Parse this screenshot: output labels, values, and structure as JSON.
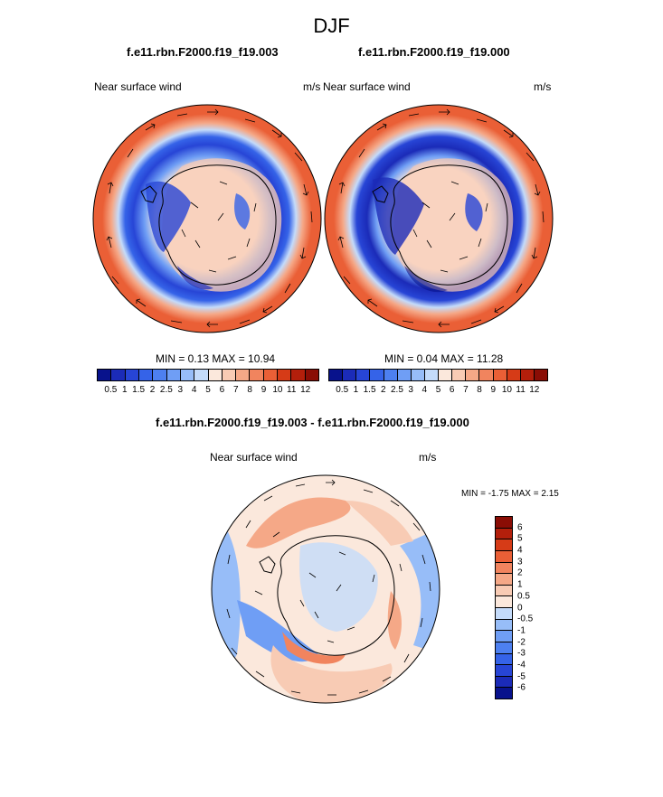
{
  "figure": {
    "title": "DJF",
    "panels": [
      {
        "title": "f.e11.rbn.F2000.f19_f19.003",
        "variable": "Near surface wind",
        "units": "m/s",
        "min_label": "MIN =   0.13 MAX =  10.94",
        "min": 0.13,
        "max": 10.94
      },
      {
        "title": "f.e11.rbn.F2000.f19_f19.000",
        "variable": "Near surface wind",
        "units": "m/s",
        "min_label": "MIN =   0.04 MAX =  11.28",
        "min": 0.04,
        "max": 11.28
      },
      {
        "title": "f.e11.rbn.F2000.f19_f19.003 - f.e11.rbn.F2000.f19_f19.000",
        "variable": "Near surface wind",
        "units": "m/s",
        "min_label": "MIN =  -1.75 MAX =   2.15",
        "min": -1.75,
        "max": 2.15
      }
    ],
    "wind_colorbar": {
      "labels": [
        "0.5",
        "1",
        "1.5",
        "2",
        "2.5",
        "3",
        "4",
        "5",
        "6",
        "7",
        "8",
        "9",
        "10",
        "11",
        "12"
      ],
      "colors": [
        "#08128c",
        "#1b2bb8",
        "#2745d6",
        "#3563e8",
        "#4d80f0",
        "#6f9ef5",
        "#97bdf8",
        "#c4dbfa",
        "#fbe8dc",
        "#f8cbb4",
        "#f5a887",
        "#f1845e",
        "#ea5f36",
        "#d63b17",
        "#b31f0b",
        "#8a0d05"
      ]
    },
    "diff_colorbar": {
      "labels": [
        "6",
        "5",
        "4",
        "3",
        "2",
        "1",
        "0.5",
        "0",
        "-0.5",
        "-1",
        "-2",
        "-3",
        "-4",
        "-5",
        "-6"
      ],
      "colors": [
        "#8a0d05",
        "#b31f0b",
        "#d63b17",
        "#ea5f36",
        "#f1845e",
        "#f5a887",
        "#f8cbb4",
        "#fbe8dc",
        "#c4dbfa",
        "#97bdf8",
        "#6f9ef5",
        "#4d80f0",
        "#3563e8",
        "#2745d6",
        "#1b2bb8",
        "#08128c"
      ]
    }
  }
}
